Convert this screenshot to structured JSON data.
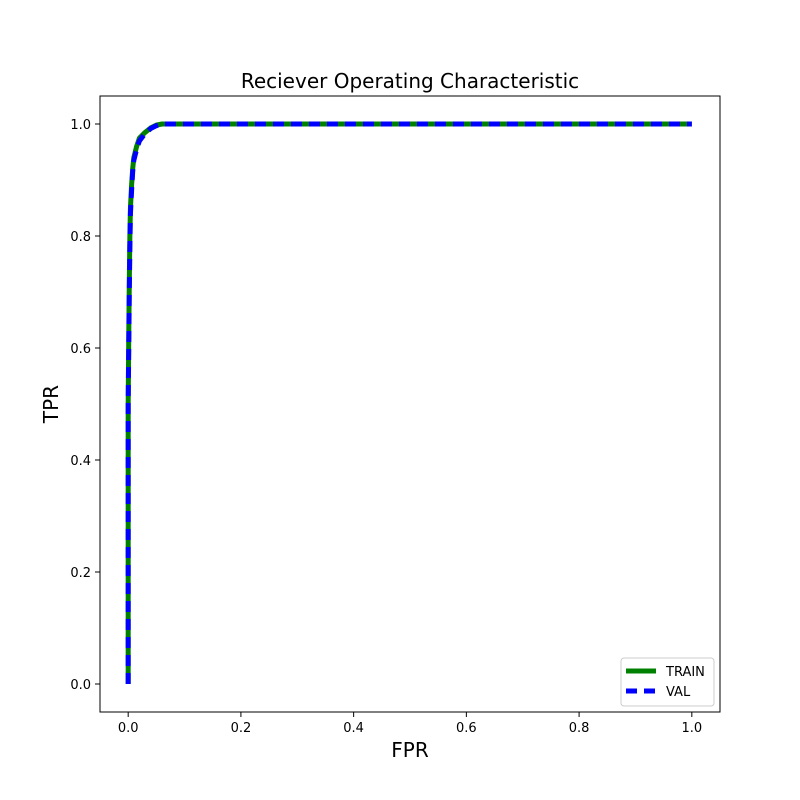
{
  "chart_data": {
    "type": "line",
    "title": "Reciever Operating Characteristic",
    "xlabel": "FPR",
    "ylabel": "TPR",
    "xlim": [
      -0.05,
      1.05
    ],
    "ylim": [
      -0.05,
      1.05
    ],
    "xticks": [
      0.0,
      0.2,
      0.4,
      0.6,
      0.8,
      1.0
    ],
    "yticks": [
      0.0,
      0.2,
      0.4,
      0.6,
      0.8,
      1.0
    ],
    "xtick_labels": [
      "0.0",
      "0.2",
      "0.4",
      "0.6",
      "0.8",
      "1.0"
    ],
    "ytick_labels": [
      "0.0",
      "0.2",
      "0.4",
      "0.6",
      "0.8",
      "1.0"
    ],
    "grid": false,
    "legend_position": "lower-right",
    "series": [
      {
        "name": "TRAIN",
        "color": "#008000",
        "style": "solid",
        "x": [
          0.0,
          0.0,
          0.001,
          0.002,
          0.003,
          0.004,
          0.006,
          0.008,
          0.01,
          0.015,
          0.02,
          0.03,
          0.04,
          0.05,
          0.06,
          0.08,
          0.1,
          1.0
        ],
        "y": [
          0.0,
          0.5,
          0.62,
          0.72,
          0.8,
          0.85,
          0.89,
          0.92,
          0.94,
          0.96,
          0.975,
          0.985,
          0.993,
          0.998,
          1.0,
          1.0,
          1.0,
          1.0
        ]
      },
      {
        "name": "VAL",
        "color": "#0000ff",
        "style": "dashed",
        "x": [
          0.0,
          0.0,
          0.001,
          0.002,
          0.003,
          0.004,
          0.006,
          0.008,
          0.01,
          0.015,
          0.02,
          0.03,
          0.04,
          0.05,
          0.06,
          0.08,
          0.1,
          1.0
        ],
        "y": [
          0.0,
          0.5,
          0.6,
          0.7,
          0.78,
          0.84,
          0.88,
          0.915,
          0.935,
          0.955,
          0.97,
          0.983,
          0.992,
          0.997,
          1.0,
          1.0,
          1.0,
          1.0
        ]
      }
    ]
  }
}
